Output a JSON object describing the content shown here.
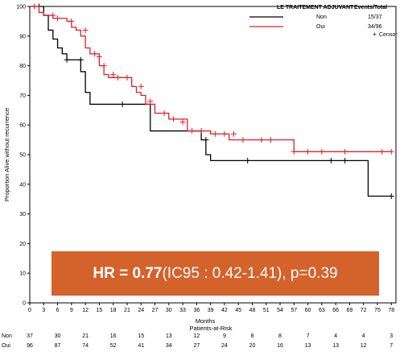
{
  "chart_data": {
    "type": "line",
    "subtype": "kaplan-meier",
    "xlabel": "Months",
    "ylabel": "Proportion Alive without recurrence",
    "xlim": [
      0,
      79
    ],
    "ylim": [
      0,
      100
    ],
    "x_ticks": [
      "0",
      "3",
      "6",
      "9",
      "12",
      "15",
      "18",
      "21",
      "24",
      "27",
      "30",
      "33",
      "36",
      "39",
      "42",
      "45",
      "48",
      "51",
      "54",
      "57",
      "60",
      "63",
      "66",
      "69",
      "72",
      "75",
      "78"
    ],
    "y_ticks": [
      "0",
      "10",
      "20",
      "30",
      "40",
      "50",
      "60",
      "70",
      "80",
      "90",
      "100"
    ],
    "legend": {
      "title": "LE TRAITEMENT ADJUVANT",
      "header": "Events/Total",
      "entries": [
        {
          "name": "Non",
          "value": "15/37",
          "color": "#000000"
        },
        {
          "name": "Oui",
          "value": "34/96",
          "color": "#e0202a"
        }
      ],
      "censor_label": "Censor",
      "placement": "top-right"
    },
    "series": [
      {
        "name": "Non",
        "color": "#000000",
        "steps": [
          [
            0,
            100
          ],
          [
            3,
            97
          ],
          [
            4,
            92
          ],
          [
            5,
            89
          ],
          [
            6,
            86
          ],
          [
            7,
            84
          ],
          [
            8,
            82
          ],
          [
            10,
            82
          ],
          [
            11,
            78
          ],
          [
            12,
            71
          ],
          [
            13,
            67
          ],
          [
            25,
            67
          ],
          [
            26,
            58
          ],
          [
            37,
            55
          ],
          [
            38,
            50
          ],
          [
            39,
            48
          ],
          [
            73,
            48
          ],
          [
            73,
            36
          ],
          [
            78,
            36
          ]
        ],
        "censor": [
          [
            2,
            100
          ],
          [
            8,
            82
          ],
          [
            11,
            82
          ],
          [
            20,
            67
          ],
          [
            38,
            55
          ],
          [
            47,
            48
          ],
          [
            65,
            48
          ],
          [
            68,
            48
          ],
          [
            78,
            36
          ]
        ]
      },
      {
        "name": "Oui",
        "color": "#e0202a",
        "steps": [
          [
            0,
            100
          ],
          [
            2,
            98
          ],
          [
            3,
            97
          ],
          [
            5,
            96
          ],
          [
            8,
            95
          ],
          [
            9,
            93
          ],
          [
            10,
            92
          ],
          [
            11,
            90
          ],
          [
            12,
            86
          ],
          [
            13,
            84
          ],
          [
            15,
            80
          ],
          [
            16,
            77
          ],
          [
            17,
            76
          ],
          [
            20,
            76
          ],
          [
            22,
            73
          ],
          [
            23,
            71
          ],
          [
            24,
            70
          ],
          [
            25,
            67
          ],
          [
            27,
            64
          ],
          [
            30,
            62
          ],
          [
            34,
            58
          ],
          [
            39,
            57
          ],
          [
            43,
            55
          ],
          [
            57,
            51
          ],
          [
            78,
            51
          ]
        ],
        "censor": [
          [
            1,
            100
          ],
          [
            5,
            97
          ],
          [
            6,
            96
          ],
          [
            9,
            95
          ],
          [
            12,
            92
          ],
          [
            14,
            84
          ],
          [
            15,
            83
          ],
          [
            16,
            80
          ],
          [
            18,
            77
          ],
          [
            19,
            76
          ],
          [
            21,
            76
          ],
          [
            24,
            73
          ],
          [
            26,
            68
          ],
          [
            29,
            64
          ],
          [
            31,
            62
          ],
          [
            33,
            61
          ],
          [
            35,
            58
          ],
          [
            37,
            58
          ],
          [
            40,
            57
          ],
          [
            42,
            57
          ],
          [
            44,
            57
          ],
          [
            46,
            55
          ],
          [
            50,
            55
          ],
          [
            52,
            55
          ],
          [
            57,
            51
          ],
          [
            60,
            51
          ],
          [
            63,
            51
          ],
          [
            68,
            51
          ],
          [
            76,
            51
          ],
          [
            78,
            51
          ]
        ]
      }
    ],
    "risk_table": {
      "title": "Patients-at-Risk",
      "rows": [
        {
          "name": "Non",
          "values": [
            "37",
            "30",
            "21",
            "16",
            "15",
            "13",
            "12",
            "9",
            "8",
            "8",
            "7",
            "4",
            "4",
            "3"
          ]
        },
        {
          "name": "Oui",
          "values": [
            "96",
            "87",
            "74",
            "52",
            "41",
            "34",
            "27",
            "24",
            "20",
            "16",
            "13",
            "13",
            "12",
            "7"
          ]
        }
      ]
    }
  },
  "annotation": {
    "main": "HR = 0.77",
    "detail": " (IC95 : 0.42-1.41), p=0.39"
  }
}
